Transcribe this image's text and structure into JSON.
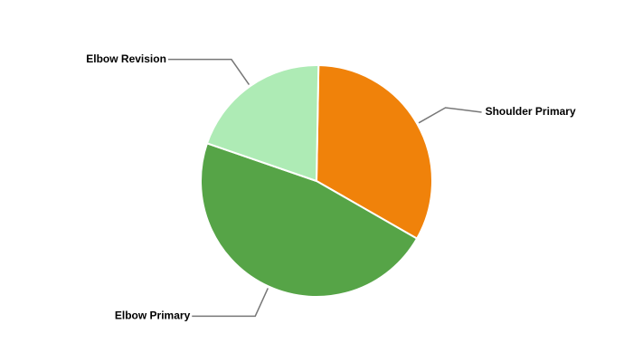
{
  "chart_data": {
    "type": "pie",
    "categories": [
      "Shoulder Primary",
      "Elbow Primary",
      "Elbow Revision"
    ],
    "values": [
      33,
      47,
      20
    ],
    "colors": [
      "#f0820a",
      "#56a447",
      "#aeebb5"
    ]
  }
}
